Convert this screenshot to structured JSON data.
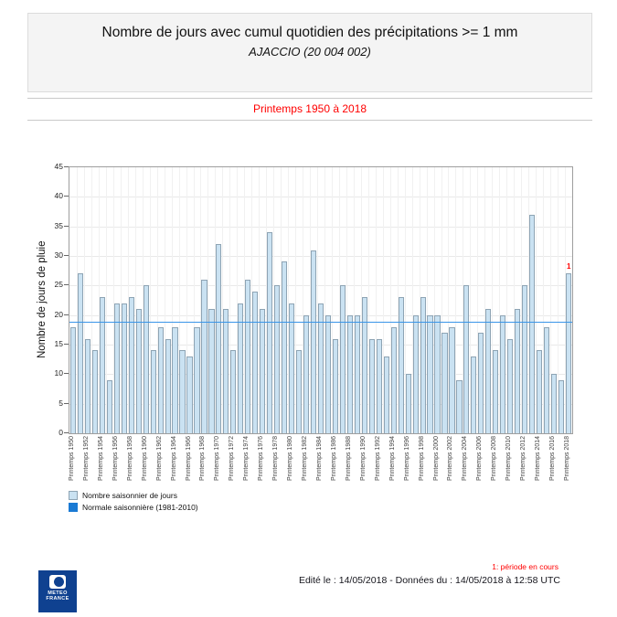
{
  "header": {
    "title": "Nombre de jours avec cumul quotidien des précipitations >= 1 mm",
    "subtitle": "AJACCIO (20 004 002)"
  },
  "period_banner": {
    "text": "Printemps 1950 à 2018",
    "color": "#ff0000"
  },
  "chart_data": {
    "type": "bar",
    "ylabel": "Nombre de jours de pluie",
    "ylim": [
      0,
      45
    ],
    "ytick_step": 5,
    "grid": true,
    "xtick_label_prefix": "Printemps",
    "xtick_every_years": 2,
    "categories": [
      1950,
      1951,
      1952,
      1953,
      1954,
      1955,
      1956,
      1957,
      1958,
      1959,
      1960,
      1961,
      1962,
      1963,
      1964,
      1965,
      1966,
      1967,
      1968,
      1969,
      1970,
      1971,
      1972,
      1973,
      1974,
      1975,
      1976,
      1977,
      1978,
      1979,
      1980,
      1981,
      1982,
      1983,
      1984,
      1985,
      1986,
      1987,
      1988,
      1989,
      1990,
      1991,
      1992,
      1993,
      1994,
      1995,
      1996,
      1997,
      1998,
      1999,
      2000,
      2001,
      2002,
      2003,
      2004,
      2005,
      2006,
      2007,
      2008,
      2009,
      2010,
      2011,
      2012,
      2013,
      2014,
      2015,
      2016,
      2017,
      2018
    ],
    "values": [
      18,
      27,
      16,
      14,
      23,
      9,
      22,
      22,
      23,
      21,
      25,
      14,
      18,
      16,
      18,
      14,
      13,
      18,
      26,
      21,
      32,
      21,
      14,
      22,
      26,
      24,
      21,
      34,
      25,
      29,
      22,
      14,
      20,
      31,
      22,
      20,
      16,
      25,
      20,
      20,
      23,
      16,
      16,
      13,
      18,
      23,
      10,
      20,
      23,
      20,
      20,
      17,
      18,
      9,
      25,
      13,
      17,
      21,
      14,
      20,
      16,
      21,
      25,
      37,
      14,
      18,
      10,
      9,
      27
    ],
    "normale": {
      "label": "Normale saisonnière (1981-2010)",
      "value": 18.8,
      "color": "#3a95e8"
    },
    "bar_fill": "#cae2f2",
    "bar_stroke": "#8ea4b4",
    "current_period_marker": {
      "year": 2018,
      "symbol": "1",
      "color": "#ff0000"
    }
  },
  "legend": {
    "items": [
      {
        "label": "Nombre saisonnier de jours",
        "swatch": "bar"
      },
      {
        "label": "Normale saisonnière (1981-2010)",
        "swatch": "line"
      }
    ]
  },
  "footer": {
    "note": "1: période en cours",
    "edited": "Edité le : 14/05/2018 - Données du : 14/05/2018 à 12:58 UTC",
    "logo": {
      "line1": "METEO",
      "line2": "FRANCE"
    }
  }
}
